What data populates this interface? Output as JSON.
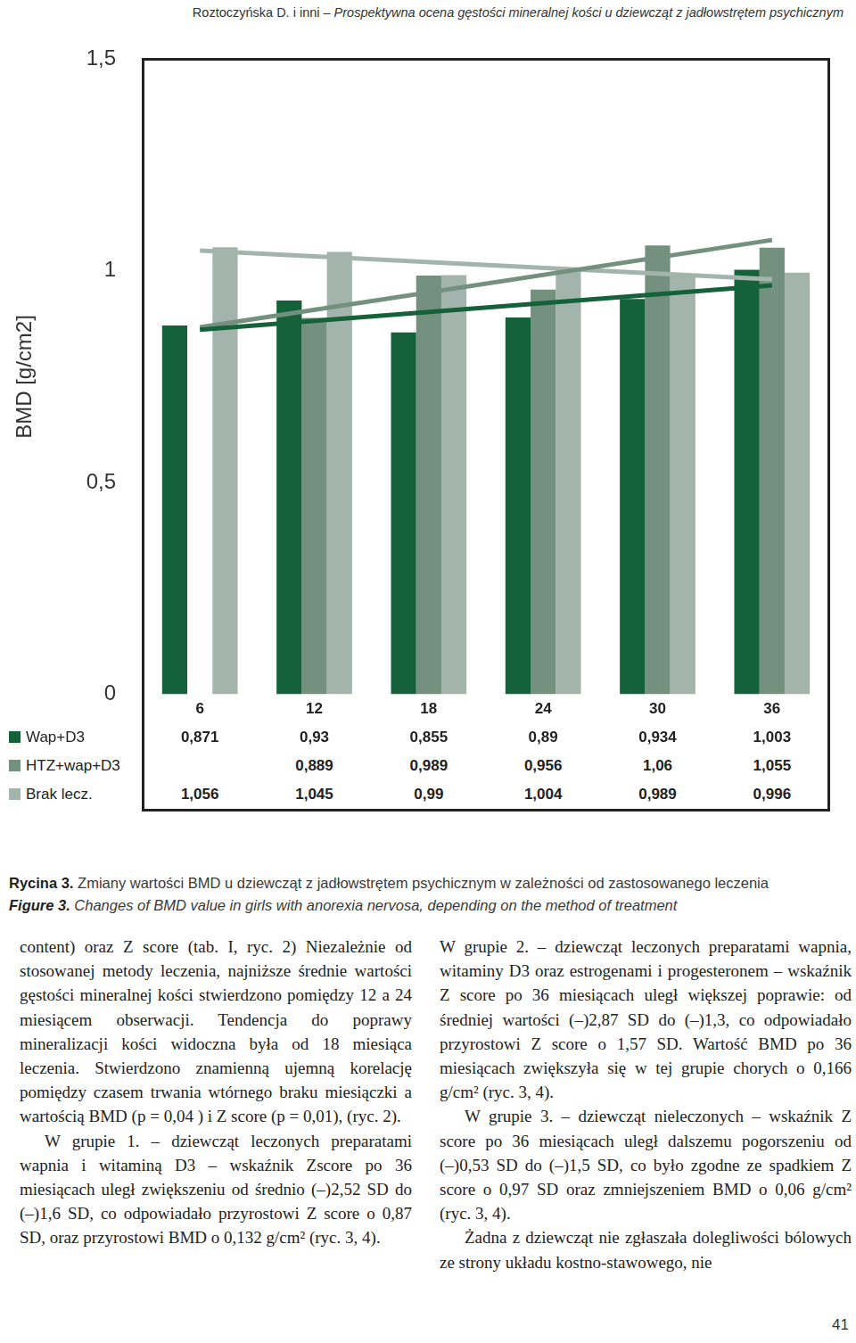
{
  "header": {
    "authors": "Roztoczyńska D. i inni –",
    "title": "Prospektywna ocena gęstości mineralnej kości u dziewcząt z jadłowstrętem psychicznym"
  },
  "chart_data": {
    "type": "bar",
    "y_label": "BMD [g/cm2]",
    "categories": [
      6,
      12,
      18,
      24,
      30,
      36
    ],
    "series": [
      {
        "name": "Wap+D3",
        "color": "#14613a",
        "values": [
          0.871,
          0.93,
          0.855,
          0.89,
          0.934,
          1.003
        ],
        "value_labels": [
          "0,871",
          "0,93",
          "0,855",
          "0,89",
          "0,934",
          "1,003"
        ]
      },
      {
        "name": "HTZ+wap+D3",
        "color": "#74907f",
        "values": [
          null,
          0.889,
          0.989,
          0.956,
          1.06,
          1.055
        ],
        "value_labels": [
          null,
          "0,889",
          "0,989",
          "0,956",
          "1,06",
          "1,055"
        ]
      },
      {
        "name": "Brak lecz.",
        "color": "#a3b4ad",
        "values": [
          1.056,
          1.045,
          0.99,
          1.004,
          0.989,
          0.996
        ],
        "value_labels": [
          "1,056",
          "1,045",
          "0,99",
          "1,004",
          "0,989",
          "0,996"
        ]
      }
    ],
    "trendlines": [
      {
        "series": "Wap+D3",
        "x": [
          6,
          36
        ],
        "values": [
          0.861,
          0.966
        ]
      },
      {
        "series": "HTZ+wap+D3",
        "x": [
          6,
          36
        ],
        "values": [
          0.867,
          1.073
        ]
      },
      {
        "series": "Brak lecz.",
        "x": [
          6,
          36
        ],
        "values": [
          1.048,
          0.98
        ]
      }
    ],
    "ylim": [
      0,
      1.5
    ],
    "yticks": [
      0,
      {
        "value": 0.5,
        "label": "0,5"
      },
      1,
      {
        "value": 1.5,
        "label": "1,5"
      }
    ],
    "grid": false
  },
  "caption": {
    "pl_label": "Rycina 3.",
    "pl_text": "Zmiany wartości BMD u dziewcząt z jadłowstrętem psychicznym w zależności od zastosowanego leczenia",
    "en_label": "Figure 3.",
    "en_text": "Changes of BMD value in girls with anorexia nervosa, depending on the method of treatment"
  },
  "columns": [
    [
      "content) oraz Z score (tab. I, ryc. 2) Niezależnie od stosowanej metody leczenia, najniższe średnie wartości gęstości mineralnej kości stwierdzono pomiędzy 12 a 24 miesiącem obserwacji. Tendencja do poprawy mineralizacji kości widoczna była od 18 miesiąca leczenia. Stwierdzono znamienną ujemną korelację pomiędzy czasem trwania wtórnego braku miesiączki a wartością BMD (p = 0,04 ) i Z score (p = 0,01), (ryc. 2).",
      "W grupie 1. – dziewcząt leczonych preparatami wapnia i witaminą D3 – wskaźnik Zscore po 36 miesiącach uległ zwiększeniu od średnio (–)2,52 SD do (–)1,6 SD, co odpowiadało przyrostowi Z score o 0,87 SD, oraz przyrostowi BMD o 0,132 g/cm² (ryc. 3, 4)."
    ],
    [
      "W grupie 2. – dziewcząt leczonych preparatami wapnia, witaminy D3 oraz estrogenami i progesteronem – wskaźnik Z score po 36 miesiącach uległ większej poprawie: od średniej wartości (–)2,87 SD do (–)1,3, co odpowiadało przyrostowi Z score o 1,57 SD. Wartość BMD po 36 miesiącach zwiększyła się w tej grupie chorych o 0,166 g/cm² (ryc. 3, 4).",
      "W grupie 3. – dziewcząt nieleczonych – wskaźnik Z score po 36 miesiącach uległ dalszemu pogorszeniu od (–)0,53 SD do (–)1,5 SD, co było zgodne ze spadkiem Z score o 0,97 SD oraz zmniejszeniem BMD o 0,06 g/cm² (ryc. 3, 4).",
      "Żadna z dziewcząt nie zgłaszała dolegliwości bólowych ze strony układu kostno-stawowego, nie"
    ]
  ],
  "page_number": 41
}
